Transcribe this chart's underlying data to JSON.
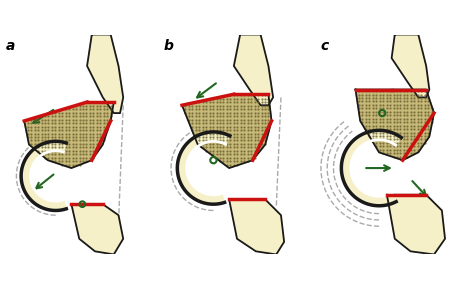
{
  "bg_color": "#ffffff",
  "panel_labels": [
    "a",
    "b",
    "c"
  ],
  "bone_fill": "#f5f0c8",
  "bone_outline": "#1a1a1a",
  "dot_color": "#c8ba78",
  "red_color": "#cc1111",
  "green_color": "#226622",
  "dash_color": "#aaaaaa",
  "white_color": "#ffffff",
  "figsize": [
    4.74,
    2.89
  ],
  "dpi": 100
}
